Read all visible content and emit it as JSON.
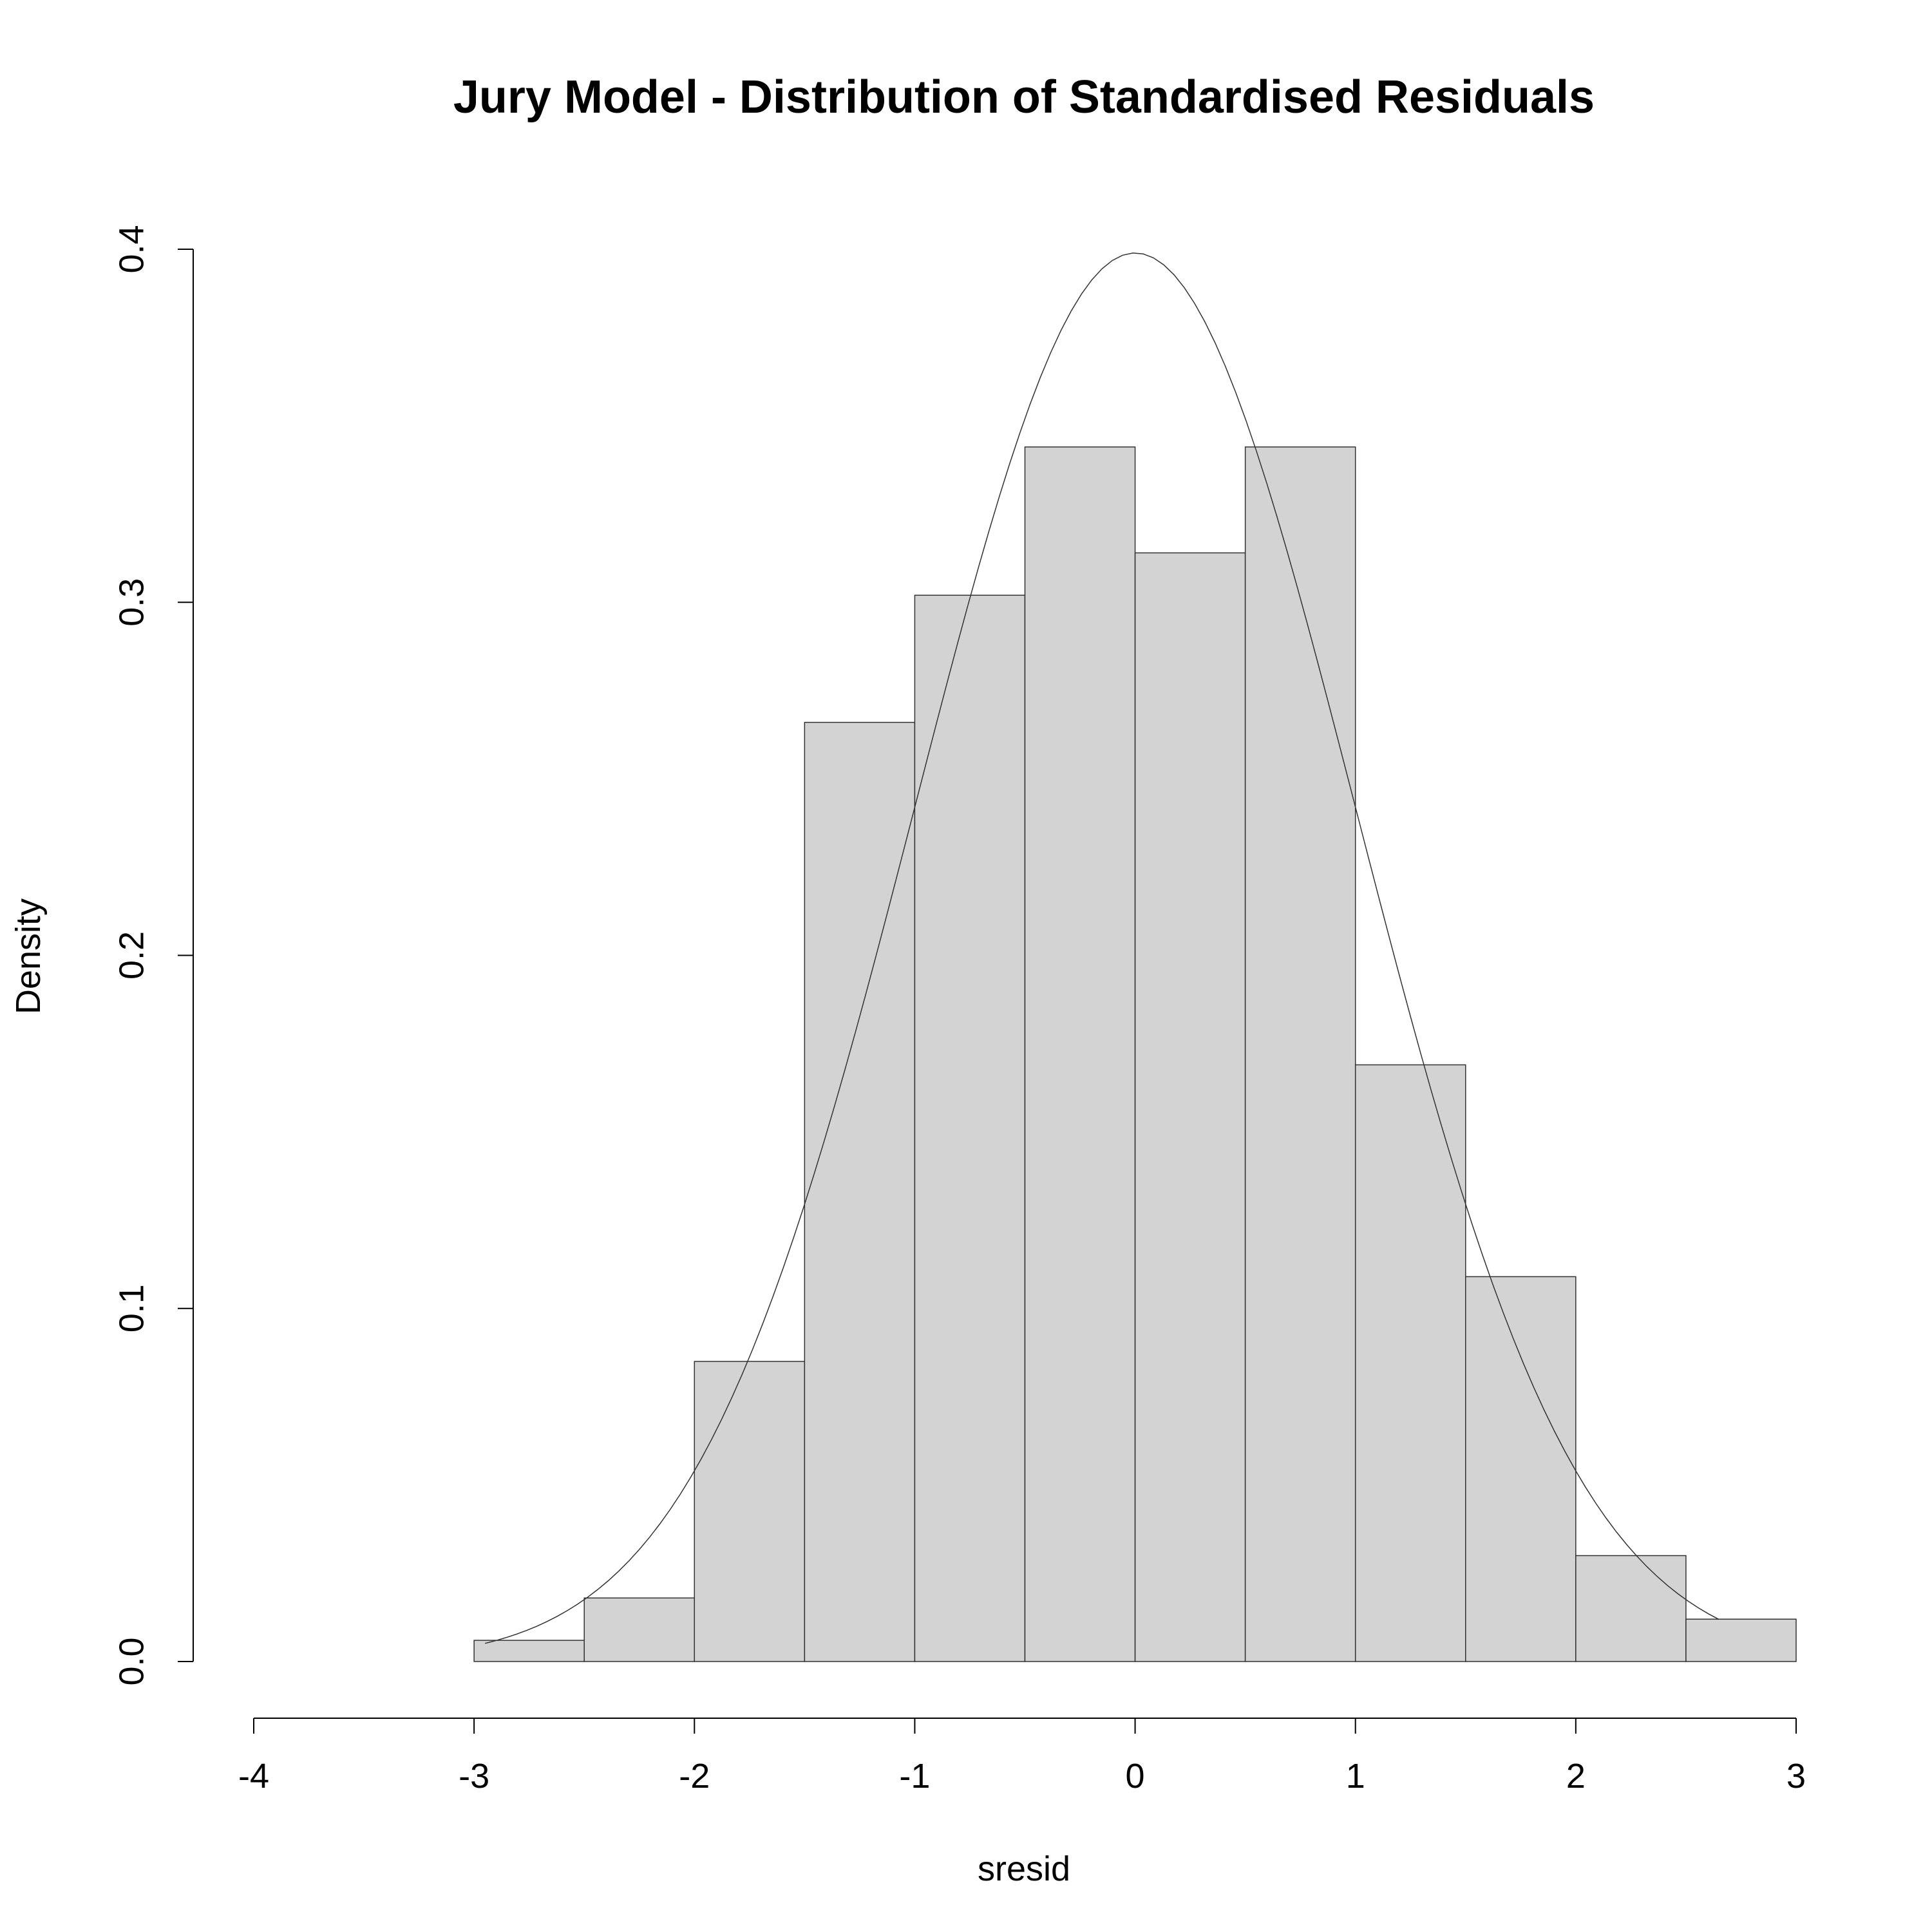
{
  "chart_data": {
    "type": "bar",
    "title": "Jury Model - Distribution of Standardised Residuals",
    "xlabel": "sresid",
    "ylabel": "Density",
    "xlim": [
      -4,
      3
    ],
    "ylim": [
      0,
      0.4
    ],
    "x_ticks": [
      -4,
      -3,
      -2,
      -1,
      0,
      1,
      2,
      3
    ],
    "x_tick_labels": [
      "-4",
      "-3",
      "-2",
      "-1",
      "0",
      "1",
      "2",
      "3"
    ],
    "y_ticks": [
      0,
      0.1,
      0.2,
      0.3,
      0.4
    ],
    "y_tick_labels": [
      "0.0",
      "0.1",
      "0.2",
      "0.3",
      "0.4"
    ],
    "grid": false,
    "bins": [
      {
        "from": -3.0,
        "to": -2.5,
        "density": 0.006
      },
      {
        "from": -2.5,
        "to": -2.0,
        "density": 0.018
      },
      {
        "from": -2.0,
        "to": -1.5,
        "density": 0.085
      },
      {
        "from": -1.5,
        "to": -1.0,
        "density": 0.266
      },
      {
        "from": -1.0,
        "to": -0.5,
        "density": 0.302
      },
      {
        "from": -0.5,
        "to": 0.0,
        "density": 0.344
      },
      {
        "from": 0.0,
        "to": 0.5,
        "density": 0.314
      },
      {
        "from": 0.5,
        "to": 1.0,
        "density": 0.344
      },
      {
        "from": 1.0,
        "to": 1.5,
        "density": 0.169
      },
      {
        "from": 1.5,
        "to": 2.0,
        "density": 0.109
      },
      {
        "from": 2.0,
        "to": 2.5,
        "density": 0.03
      },
      {
        "from": 2.5,
        "to": 3.0,
        "density": 0.012
      }
    ],
    "overlay_curve": {
      "type": "line",
      "x_range": [
        -2.95,
        2.65
      ],
      "mean": 0,
      "sd": 1
    }
  }
}
